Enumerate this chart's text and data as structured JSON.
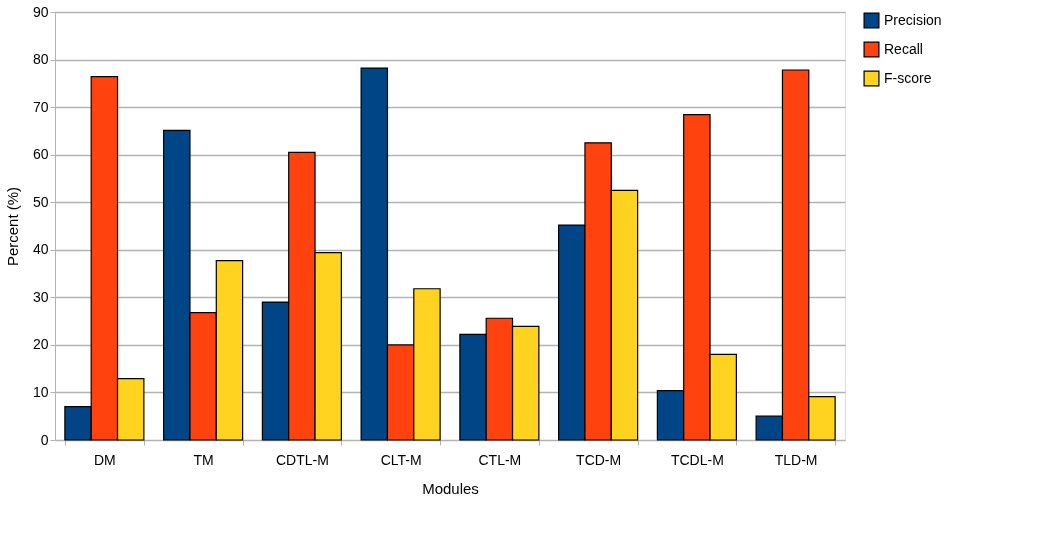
{
  "chart_data": {
    "type": "bar",
    "xlabel": "Modules",
    "ylabel": "Percent (%)",
    "categories": [
      "DM",
      "TM",
      "CDTL-M",
      "CLT-M",
      "CTL-M",
      "TCD-M",
      "TCDL-M",
      "TLD-M"
    ],
    "series": [
      {
        "name": "Precision",
        "color": "#004586",
        "values": [
          7.0,
          65.1,
          29.0,
          78.2,
          22.2,
          45.2,
          10.4,
          5.0
        ]
      },
      {
        "name": "Recall",
        "color": "#ff420e",
        "values": [
          76.4,
          26.8,
          60.5,
          20.0,
          25.6,
          62.5,
          68.4,
          77.8
        ]
      },
      {
        "name": "F-score",
        "color": "#ffd320",
        "values": [
          12.9,
          37.7,
          39.4,
          31.8,
          23.9,
          52.5,
          18.0,
          9.1
        ]
      }
    ],
    "ylim": [
      0,
      90
    ],
    "yticks": [
      0,
      10,
      20,
      30,
      40,
      50,
      60,
      70,
      80,
      90
    ],
    "grid": "y",
    "legend": "right"
  }
}
